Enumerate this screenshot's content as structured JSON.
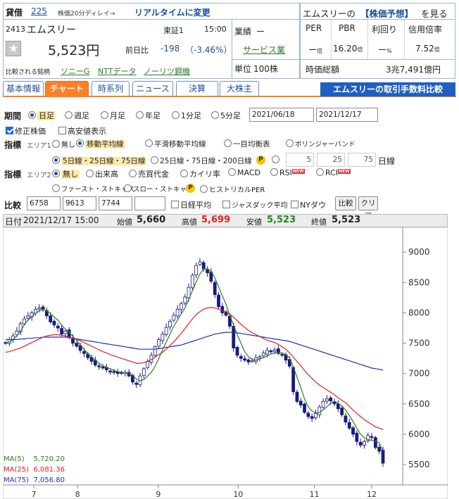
{
  "header": {
    "kasikabu": "貸借",
    "code_link": "225",
    "delay_note": "株価20分ディレイ→",
    "realtime_link": "リアルタイムに変更",
    "code": "2413",
    "name": "エムスリー",
    "market": "東証1",
    "time": "15:00",
    "price": "5,523円",
    "change_label": "前日比",
    "change": "-198",
    "change_pct": "（-3.46%）",
    "compare_label": "比較される銘柄",
    "compare_links": [
      "ソニーG",
      "NTTデータ",
      "ノーリツ鋼機"
    ],
    "industry_label": "業績",
    "industry_dash": "ー",
    "industry_link": "サービス業",
    "unit_label": "単位",
    "unit_value": "100株",
    "forecast_prefix": "エムスリーの",
    "forecast_link": "【株価予想】",
    "forecast_suffix": "を見る",
    "metrics": [
      {
        "label": "PER",
        "value": "ー",
        "unit": "倍"
      },
      {
        "label": "PBR",
        "value": "16.20",
        "unit": "倍"
      },
      {
        "label": "利回り",
        "value": "ー",
        "unit": "%"
      },
      {
        "label": "信用倍率",
        "value": "7.52",
        "unit": "倍"
      }
    ],
    "market_cap_label": "時価総額",
    "market_cap_value": "3兆7,491億円"
  },
  "tabs": [
    "基本情報",
    "チャート",
    "時系列",
    "ニュース",
    "決算",
    "大株主"
  ],
  "fee_banner": "エムスリーの取引手数料比較",
  "period": {
    "label": "期間",
    "options": [
      "日足",
      "週足",
      "月足",
      "年足",
      "1分足",
      "5分足"
    ],
    "selected": "日足",
    "from": "2021/06/18",
    "to": "2021/12/17",
    "adjusted": "修正株価",
    "high_low": "高安値表示"
  },
  "indicator1": {
    "label": "指標",
    "area": "エリア1",
    "options": [
      "無し",
      "移動平均線",
      "平滑移動平均線",
      "一目均衡表",
      "ボリンジャーバンド"
    ],
    "selected": "移動平均線",
    "ma_sets": [
      "5日線・25日線・75日線",
      "25日線・75日線・200日線"
    ],
    "custom": [
      "5",
      "25",
      "75"
    ],
    "custom_unit": "日線"
  },
  "indicator2": {
    "label": "指標",
    "area": "エリア2",
    "options": [
      "無し",
      "出来高",
      "売買代金",
      "カイリ率",
      "MACD",
      "RSI",
      "RCI"
    ],
    "options_row2": [
      "ファースト・ストキャス",
      "スロー・ストキャス",
      "ヒストリカルPER"
    ],
    "selected": "無し",
    "new_badge": "NEW"
  },
  "compare": {
    "label": "比較",
    "codes": [
      "6758",
      "9613",
      "7744",
      ""
    ],
    "checks": [
      "日経平均",
      "ジャスダック平均",
      "NYダウ"
    ],
    "compare_button": "比較",
    "clear_button": "クリア"
  },
  "ohlc": {
    "date_label": "日付",
    "date": "2021/12/17 15:00",
    "open_label": "始値",
    "open": "5,660",
    "high_label": "高値",
    "high": "5,699",
    "low_label": "安値",
    "low": "5,523",
    "close_label": "終値",
    "close": "5,523"
  },
  "p_badge": "P",
  "colors": {
    "ma5": "#2e7d1e",
    "ma25": "#e02020",
    "ma75": "#2030b0",
    "candle": "#1a1a80",
    "up": "#1aa000",
    "down": "#e02020",
    "accent": "#ff7f27",
    "brand": "#1a4fa0"
  },
  "chart_data": {
    "type": "candlestick",
    "x_labels": [
      "7",
      "8",
      "9",
      "10",
      "11",
      "12"
    ],
    "y_ticks": [
      9000,
      8500,
      8000,
      7500,
      7000,
      6500,
      6000,
      5500
    ],
    "ylim": [
      5350,
      9200
    ],
    "legend": [
      {
        "name": "MA(5)",
        "value": "5,720.20"
      },
      {
        "name": "MA(25)",
        "value": "6,081.36"
      },
      {
        "name": "MA(75)",
        "value": "7,056.80"
      }
    ],
    "closes": [
      7500,
      7560,
      7620,
      7700,
      7820,
      7900,
      7950,
      8000,
      8060,
      8080,
      8050,
      7950,
      7850,
      7800,
      7750,
      7650,
      7700,
      7600,
      7500,
      7450,
      7380,
      7330,
      7260,
      7200,
      7140,
      7110,
      7090,
      7060,
      7040,
      7020,
      7000,
      7010,
      7020,
      6960,
      6860,
      6820,
      6960,
      7080,
      7200,
      7300,
      7440,
      7560,
      7650,
      7760,
      7860,
      7960,
      8060,
      8150,
      8260,
      8420,
      8620,
      8780,
      8840,
      8720,
      8660,
      8520,
      8300,
      8100,
      8000,
      7960,
      7780,
      7420,
      7300,
      7250,
      7220,
      7190,
      7210,
      7260,
      7280,
      7340,
      7380,
      7360,
      7390,
      7330,
      7310,
      7220,
      7120,
      6700,
      6540,
      6480,
      6360,
      6290,
      6260,
      6340,
      6450,
      6540,
      6580,
      6550,
      6500,
      6420,
      6320,
      6200,
      6100,
      6000,
      5880,
      5820,
      5880,
      5980,
      5950,
      5780,
      5720,
      5523
    ],
    "ma5": [
      7500,
      7520,
      7560,
      7620,
      7700,
      7800,
      7880,
      7940,
      7990,
      8030,
      8060,
      8030,
      7990,
      7930,
      7880,
      7800,
      7730,
      7680,
      7610,
      7550,
      7470,
      7400,
      7330,
      7270,
      7220,
      7170,
      7130,
      7100,
      7080,
      7050,
      7030,
      7020,
      7020,
      7000,
      6970,
      6910,
      6880,
      6900,
      6960,
      7020,
      7120,
      7250,
      7390,
      7520,
      7650,
      7780,
      7880,
      7980,
      8080,
      8220,
      8360,
      8510,
      8640,
      8730,
      8720,
      8680,
      8580,
      8430,
      8280,
      8140,
      7960,
      7800,
      7640,
      7500,
      7360,
      7280,
      7230,
      7220,
      7240,
      7260,
      7290,
      7320,
      7340,
      7350,
      7340,
      7310,
      7260,
      7110,
      6940,
      6770,
      6580,
      6450,
      6380,
      6350,
      6360,
      6400,
      6450,
      6510,
      6540,
      6510,
      6470,
      6400,
      6310,
      6210,
      6100,
      6000,
      5940,
      5910,
      5900,
      5880,
      5860,
      5720
    ],
    "ma25": [
      7350,
      7360,
      7380,
      7400,
      7420,
      7450,
      7480,
      7510,
      7540,
      7570,
      7600,
      7620,
      7630,
      7640,
      7640,
      7630,
      7620,
      7600,
      7580,
      7560,
      7540,
      7510,
      7480,
      7450,
      7420,
      7390,
      7360,
      7340,
      7310,
      7290,
      7270,
      7250,
      7230,
      7210,
      7190,
      7170,
      7170,
      7180,
      7200,
      7230,
      7270,
      7310,
      7350,
      7400,
      7460,
      7520,
      7590,
      7660,
      7740,
      7820,
      7900,
      7970,
      8020,
      8060,
      8080,
      8090,
      8080,
      8060,
      8040,
      8010,
      7980,
      7930,
      7870,
      7810,
      7760,
      7710,
      7670,
      7640,
      7610,
      7580,
      7550,
      7530,
      7510,
      7480,
      7440,
      7400,
      7340,
      7270,
      7200,
      7130,
      7050,
      6980,
      6920,
      6860,
      6810,
      6770,
      6730,
      6690,
      6650,
      6600,
      6560,
      6520,
      6460,
      6400,
      6340,
      6290,
      6240,
      6200,
      6160,
      6120,
      6100,
      6080
    ],
    "ma75": [
      7560,
      7560,
      7560,
      7560,
      7570,
      7570,
      7580,
      7580,
      7590,
      7590,
      7600,
      7600,
      7600,
      7600,
      7600,
      7600,
      7600,
      7590,
      7580,
      7570,
      7560,
      7550,
      7540,
      7530,
      7520,
      7510,
      7500,
      7490,
      7480,
      7470,
      7460,
      7450,
      7440,
      7430,
      7420,
      7410,
      7400,
      7400,
      7400,
      7400,
      7400,
      7410,
      7420,
      7430,
      7440,
      7450,
      7460,
      7470,
      7490,
      7510,
      7530,
      7550,
      7570,
      7590,
      7610,
      7630,
      7650,
      7660,
      7670,
      7680,
      7680,
      7680,
      7670,
      7660,
      7650,
      7640,
      7630,
      7620,
      7610,
      7600,
      7590,
      7580,
      7570,
      7560,
      7550,
      7540,
      7530,
      7510,
      7490,
      7470,
      7450,
      7430,
      7410,
      7390,
      7370,
      7350,
      7330,
      7310,
      7290,
      7270,
      7250,
      7230,
      7210,
      7190,
      7170,
      7150,
      7130,
      7110,
      7090,
      7080,
      7070,
      7057
    ]
  }
}
